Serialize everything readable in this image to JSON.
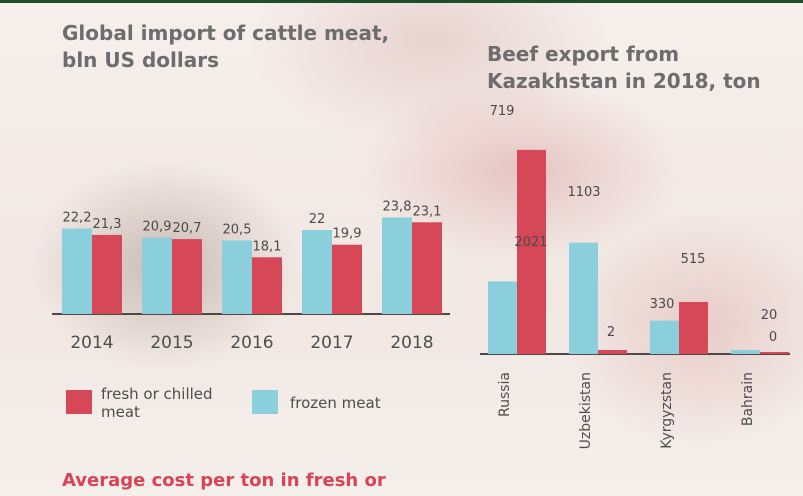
{
  "colors": {
    "frozen": "#8ccfdc",
    "fresh": "#d64858",
    "axis": "#4a4a4a"
  },
  "chart_data": [
    {
      "type": "bar",
      "title": "Global import of cattle meat, bln US dollars",
      "categories": [
        "2014",
        "2015",
        "2016",
        "2017",
        "2018"
      ],
      "series": [
        {
          "name": "frozen meat",
          "values": [
            22.2,
            20.9,
            20.5,
            22,
            23.8
          ],
          "labels": [
            "22,2",
            "20,9",
            "20,5",
            "22",
            "23,8"
          ]
        },
        {
          "name": "fresh or chilled meat",
          "values": [
            21.3,
            20.7,
            18.1,
            19.9,
            23.1
          ],
          "labels": [
            "21,3",
            "20,7",
            "18,1",
            "19,9",
            "23,1"
          ]
        }
      ],
      "legend": "bottom"
    },
    {
      "type": "bar",
      "title": "Beef export from Kazakhstan in 2018, ton",
      "categories": [
        "Russia",
        "Uzbekistan",
        "Kyrgyzstan",
        "Bahrain"
      ],
      "series": [
        {
          "values": [
            719,
            1103,
            330,
            20
          ]
        },
        {
          "values": [
            2021,
            2,
            515,
            0
          ]
        }
      ]
    }
  ],
  "footer": {
    "title": "Average cost per ton in fresh or"
  }
}
